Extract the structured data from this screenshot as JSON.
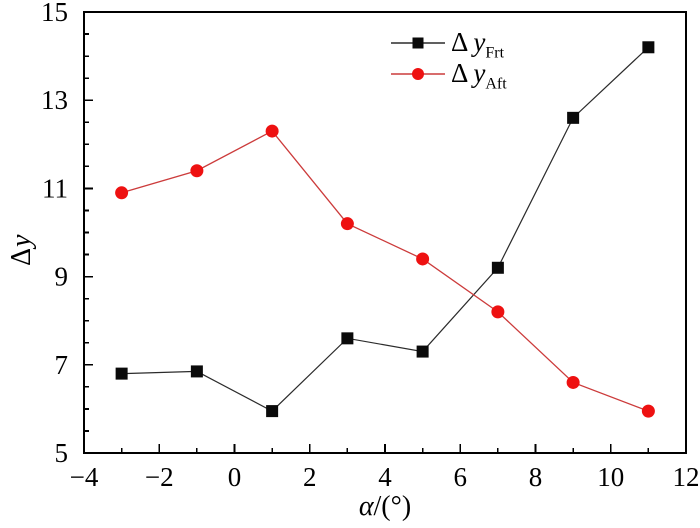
{
  "figure": {
    "background": "#ffffff",
    "frame_color": "#000000",
    "xlabel": {
      "var": "α",
      "rest": "/(°)"
    },
    "ylabel": {
      "delta": "Δ",
      "var": "y"
    }
  },
  "legend": {
    "items": [
      {
        "delta": "Δ",
        "var": "y",
        "sub": "Frt"
      },
      {
        "delta": "Δ",
        "var": "y",
        "sub": "Aft"
      }
    ]
  },
  "chart_data": {
    "type": "line",
    "title": "",
    "xlabel": "α/(°)",
    "ylabel": "Δy",
    "x": [
      -3,
      -1,
      1,
      3,
      5,
      7,
      9,
      11
    ],
    "series": [
      {
        "name": "Δy Frt",
        "legend_index": 0,
        "line_color": "#2b2b2b",
        "line_width": 1.2,
        "marker": "square",
        "marker_color": "#0a0a0a",
        "marker_size": 12,
        "values": [
          6.8,
          6.85,
          5.95,
          7.6,
          7.3,
          9.2,
          12.6,
          14.2
        ]
      },
      {
        "name": "Δy Aft",
        "legend_index": 1,
        "line_color": "#cc3b3b",
        "line_width": 1.3,
        "marker": "circle",
        "marker_color": "#ee1111",
        "marker_size": 13,
        "values": [
          10.9,
          11.4,
          12.3,
          10.2,
          9.4,
          8.2,
          6.6,
          5.95
        ]
      }
    ],
    "xlim": [
      -4,
      12
    ],
    "ylim": [
      5,
      15
    ],
    "xticks": [
      -4,
      -2,
      0,
      2,
      4,
      6,
      8,
      10,
      12
    ],
    "xtick_labels": [
      "−4",
      "−2",
      "0",
      "2",
      "4",
      "6",
      "8",
      "10",
      "12"
    ],
    "yticks": [
      5,
      7,
      9,
      11,
      13,
      15
    ],
    "ytick_labels": [
      "5",
      "7",
      "9",
      "11",
      "13",
      "15"
    ],
    "x_minor_step": 1,
    "y_minor_step": 0.5,
    "tick_direction": "in",
    "grid": false,
    "legend_position": "inside-top-center"
  }
}
